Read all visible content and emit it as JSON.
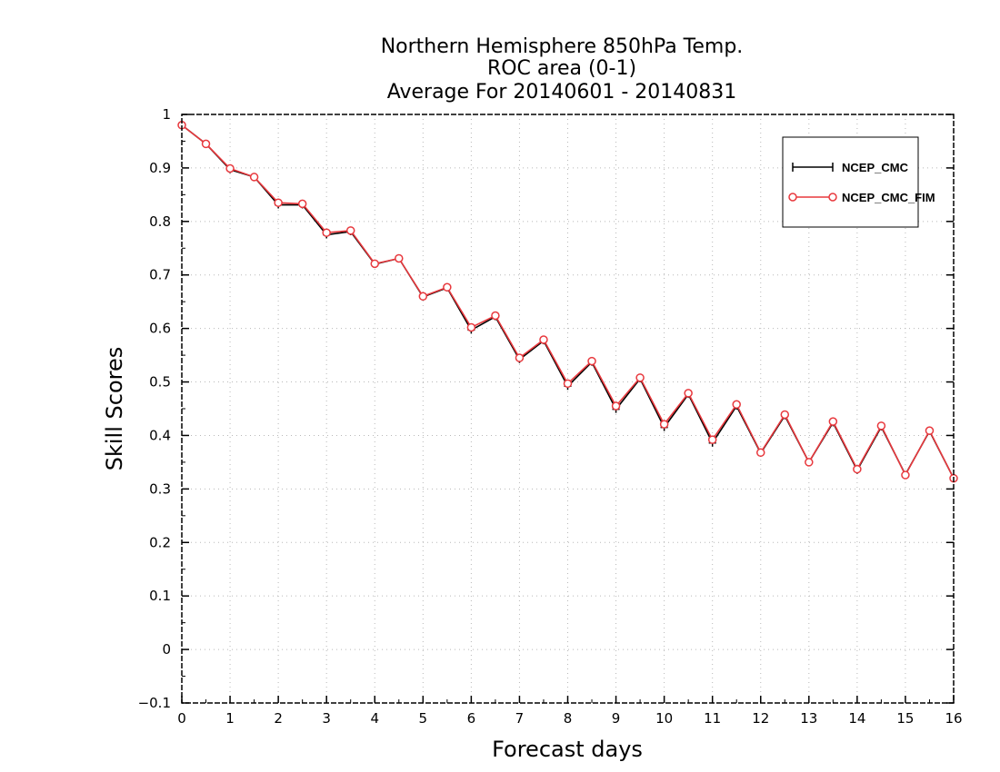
{
  "chart_data": {
    "type": "line",
    "title_lines": [
      "Northern Hemisphere 850hPa Temp.",
      "ROC area (0-1)",
      "Average For 20140601 - 20140831"
    ],
    "xlabel": "Forecast days",
    "ylabel": "Skill Scores",
    "xlim": [
      0,
      16
    ],
    "ylim": [
      -0.1,
      1
    ],
    "x_ticks": [
      0,
      1,
      2,
      3,
      4,
      5,
      6,
      7,
      8,
      9,
      10,
      11,
      12,
      13,
      14,
      15,
      16
    ],
    "y_ticks": [
      -0.1,
      0,
      0.1,
      0.2,
      0.3,
      0.4,
      0.5,
      0.6,
      0.7,
      0.8,
      0.9,
      1
    ],
    "y_tick_labels": [
      "−0.1",
      "0",
      "0.1",
      "0.2",
      "0.3",
      "0.4",
      "0.5",
      "0.6",
      "0.7",
      "0.8",
      "0.9",
      "1"
    ],
    "grid": true,
    "legend_position": "top-right",
    "x": [
      0,
      0.5,
      1,
      1.5,
      2,
      2.5,
      3,
      3.5,
      4,
      4.5,
      5,
      5.5,
      6,
      6.5,
      7,
      7.5,
      8,
      8.5,
      9,
      9.5,
      10,
      10.5,
      11,
      11.5,
      12,
      12.5,
      13,
      13.5,
      14,
      14.5,
      15,
      15.5,
      16
    ],
    "series": [
      {
        "name": "NCEP_CMC",
        "color": "#000000",
        "marker": "plus",
        "values": [
          0.98,
          0.945,
          0.897,
          0.883,
          0.831,
          0.831,
          0.775,
          0.781,
          0.72,
          0.731,
          0.659,
          0.676,
          0.597,
          0.622,
          0.542,
          0.577,
          0.492,
          0.537,
          0.449,
          0.506,
          0.415,
          0.477,
          0.386,
          0.455,
          0.367,
          0.437,
          0.35,
          0.424,
          0.335,
          0.416,
          0.327,
          0.408,
          0.32
        ]
      },
      {
        "name": "NCEP_CMC_FIM",
        "color": "#e8383d",
        "marker": "circle",
        "values": [
          0.98,
          0.945,
          0.899,
          0.883,
          0.835,
          0.833,
          0.779,
          0.783,
          0.721,
          0.731,
          0.66,
          0.677,
          0.602,
          0.624,
          0.545,
          0.579,
          0.497,
          0.539,
          0.455,
          0.508,
          0.421,
          0.479,
          0.392,
          0.458,
          0.368,
          0.439,
          0.35,
          0.426,
          0.337,
          0.418,
          0.326,
          0.409,
          0.32
        ]
      }
    ]
  }
}
